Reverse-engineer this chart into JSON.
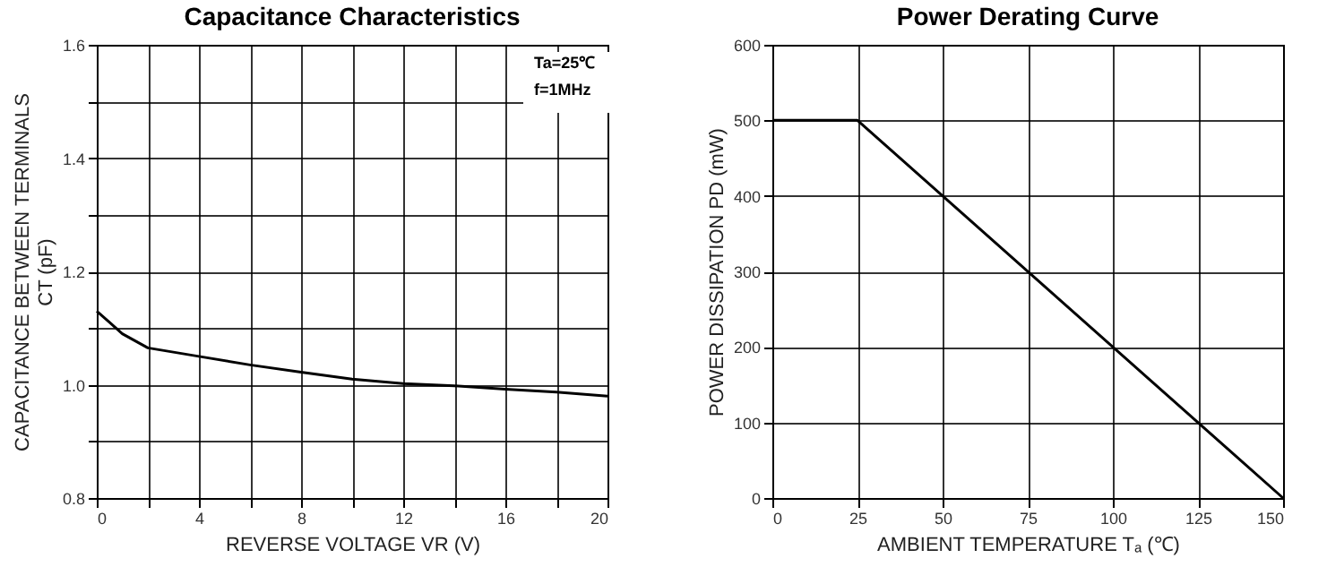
{
  "chart_data": [
    {
      "type": "line",
      "title": "Capacitance Characteristics",
      "xlabel": "REVERSE VOLTAGE   VR   (V)",
      "ylabel": "CAPACITANCE BETWEEN TERMINALS\nCT   (pF)",
      "x": [
        0,
        0.5,
        1,
        2,
        4,
        6,
        8,
        10,
        12,
        14,
        16,
        18,
        20
      ],
      "series": [
        {
          "color": "#000000",
          "values": [
            1.13,
            1.11,
            1.09,
            1.065,
            1.05,
            1.035,
            1.022,
            1.01,
            1.002,
            0.998,
            0.992,
            0.987,
            0.98
          ]
        }
      ],
      "xlim": [
        0,
        20
      ],
      "xticks": [
        0,
        {
          "value": 2,
          "label": null
        },
        4,
        {
          "value": 6,
          "label": null
        },
        8,
        {
          "value": 10,
          "label": null
        },
        12,
        {
          "value": 14,
          "label": null
        },
        16,
        {
          "value": 18,
          "label": null
        },
        20
      ],
      "ylim": [
        0.8,
        1.6
      ],
      "yticks": [
        {
          "value": 0.8,
          "label": "0.8"
        },
        {
          "value": 0.9,
          "label": null
        },
        {
          "value": 1.0,
          "label": "1.0"
        },
        {
          "value": 1.1,
          "label": null
        },
        {
          "value": 1.2,
          "label": "1.2"
        },
        {
          "value": 1.3,
          "label": null
        },
        {
          "value": 1.4,
          "label": "1.4"
        },
        {
          "value": 1.5,
          "label": null
        },
        {
          "value": 1.6,
          "label": "1.6"
        }
      ],
      "grid": true,
      "marker": "none",
      "line_style": "solid",
      "legend": false,
      "annotations": [
        "Ta=25℃",
        "f=1MHz"
      ]
    },
    {
      "type": "line",
      "title": "Power Derating Curve",
      "xlabel": "AMBIENT TEMPERATURE   Tₐ   (℃)",
      "ylabel": "POWER DISSIPATION   PD   (mW)",
      "x": [
        0,
        25,
        150
      ],
      "series": [
        {
          "color": "#000000",
          "values": [
            500,
            500,
            0
          ]
        }
      ],
      "xlim": [
        0,
        150
      ],
      "xticks": [
        0,
        25,
        50,
        75,
        100,
        125,
        150
      ],
      "ylim": [
        0,
        600
      ],
      "yticks": [
        0,
        100,
        200,
        300,
        400,
        500,
        600
      ],
      "grid": true,
      "marker": "none",
      "line_style": "solid",
      "legend": false
    }
  ]
}
